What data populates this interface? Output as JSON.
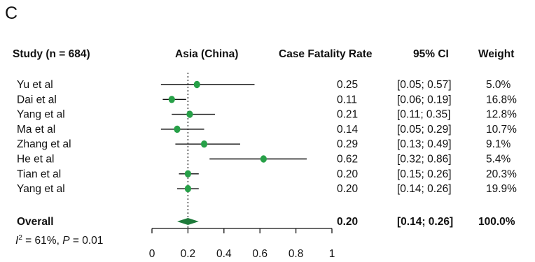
{
  "panel_label": "C",
  "colors": {
    "point": "#27a048",
    "diamond": "#1e7a3a",
    "line": "#111111"
  },
  "chart_data": {
    "type": "forest",
    "headers": {
      "study": "Study (n = 684)",
      "subgroup": "Asia (China)",
      "rate": "Case Fatality Rate",
      "ci": "95% CI",
      "weight": "Weight"
    },
    "studies": [
      {
        "name": "Yu et al",
        "rate": 0.25,
        "lo": 0.05,
        "hi": 0.57,
        "rate_text": "0.25",
        "ci_text": "[0.05; 0.57]",
        "weight_text": "5.0%"
      },
      {
        "name": "Dai et al",
        "rate": 0.11,
        "lo": 0.06,
        "hi": 0.19,
        "rate_text": "0.11",
        "ci_text": "[0.06; 0.19]",
        "weight_text": "16.8%"
      },
      {
        "name": "Yang et al",
        "rate": 0.21,
        "lo": 0.11,
        "hi": 0.35,
        "rate_text": "0.21",
        "ci_text": "[0.11; 0.35]",
        "weight_text": "12.8%"
      },
      {
        "name": "Ma et al",
        "rate": 0.14,
        "lo": 0.05,
        "hi": 0.29,
        "rate_text": "0.14",
        "ci_text": "[0.05; 0.29]",
        "weight_text": "10.7%"
      },
      {
        "name": "Zhang et al",
        "rate": 0.29,
        "lo": 0.13,
        "hi": 0.49,
        "rate_text": "0.29",
        "ci_text": "[0.13; 0.49]",
        "weight_text": "9.1%"
      },
      {
        "name": "He et al",
        "rate": 0.62,
        "lo": 0.32,
        "hi": 0.86,
        "rate_text": "0.62",
        "ci_text": "[0.32; 0.86]",
        "weight_text": "5.4%"
      },
      {
        "name": "Tian et al",
        "rate": 0.2,
        "lo": 0.15,
        "hi": 0.26,
        "rate_text": "0.20",
        "ci_text": "[0.15; 0.26]",
        "weight_text": "20.3%"
      },
      {
        "name": "Yang et al",
        "rate": 0.2,
        "lo": 0.14,
        "hi": 0.26,
        "rate_text": "0.20",
        "ci_text": "[0.14; 0.26]",
        "weight_text": "19.9%"
      }
    ],
    "overall": {
      "name": "Overall",
      "rate": 0.2,
      "lo": 0.14,
      "hi": 0.26,
      "rate_text": "0.20",
      "ci_text": "[0.14; 0.26]",
      "weight_text": "100.0%"
    },
    "heterogeneity": {
      "i2": "61%",
      "p": "0.01"
    },
    "reference_line": 0.2,
    "x_axis": {
      "min": 0,
      "max": 1,
      "ticks": [
        0,
        0.2,
        0.4,
        0.6,
        0.8,
        1
      ],
      "tick_labels": [
        "0",
        "0.2",
        "0.4",
        "0.6",
        "0.8",
        "1"
      ]
    }
  }
}
